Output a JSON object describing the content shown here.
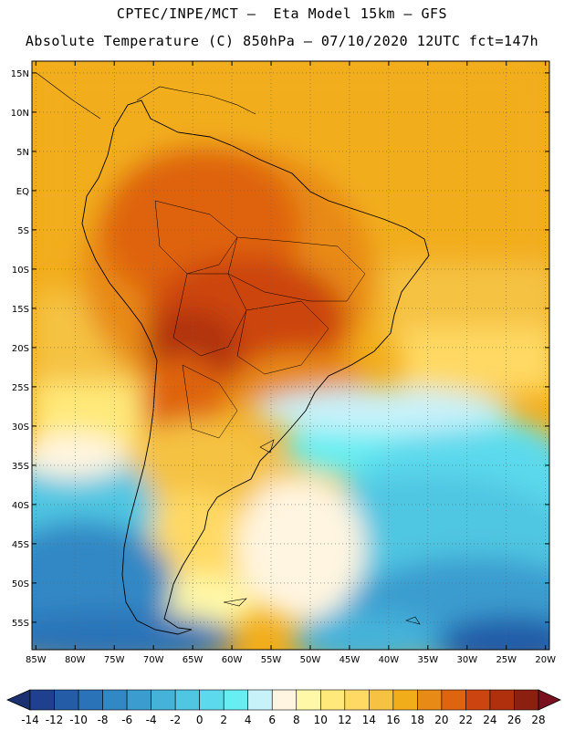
{
  "title_line1": "CPTEC/INPE/MCT —  Eta Model 15km — GFS",
  "title_line2": "Absolute Temperature (C) 850hPa — 07/10/2020 12UTC fct=147h",
  "lat_labels": [
    "15N",
    "10N",
    "5N",
    "EQ",
    "5S",
    "10S",
    "15S",
    "20S",
    "25S",
    "30S",
    "35S",
    "40S",
    "45S",
    "50S",
    "55S"
  ],
  "lon_labels": [
    "85W",
    "80W",
    "75W",
    "70W",
    "65W",
    "60W",
    "55W",
    "50W",
    "45W",
    "40W",
    "35W",
    "30W",
    "25W",
    "20W"
  ],
  "colorbar": {
    "labels": [
      "-14",
      "-12",
      "-10",
      "-8",
      "-6",
      "-4",
      "-2",
      "0",
      "2",
      "4",
      "6",
      "8",
      "10",
      "12",
      "14",
      "16",
      "18",
      "20",
      "22",
      "24",
      "26",
      "28"
    ],
    "colors": [
      "#1f3f8f",
      "#245ca8",
      "#2a73b8",
      "#3288c4",
      "#3a9ccf",
      "#45b2d9",
      "#50c6e2",
      "#5cd9ec",
      "#66eef2",
      "#c8f2fa",
      "#fff5e0",
      "#fff8a8",
      "#ffe97a",
      "#ffd964",
      "#f5c242",
      "#f2ad1a",
      "#e88a16",
      "#df6410",
      "#cc4410",
      "#b0300e",
      "#8c2010"
    ],
    "under_color": "#1a3070",
    "over_color": "#7a0f20"
  }
}
